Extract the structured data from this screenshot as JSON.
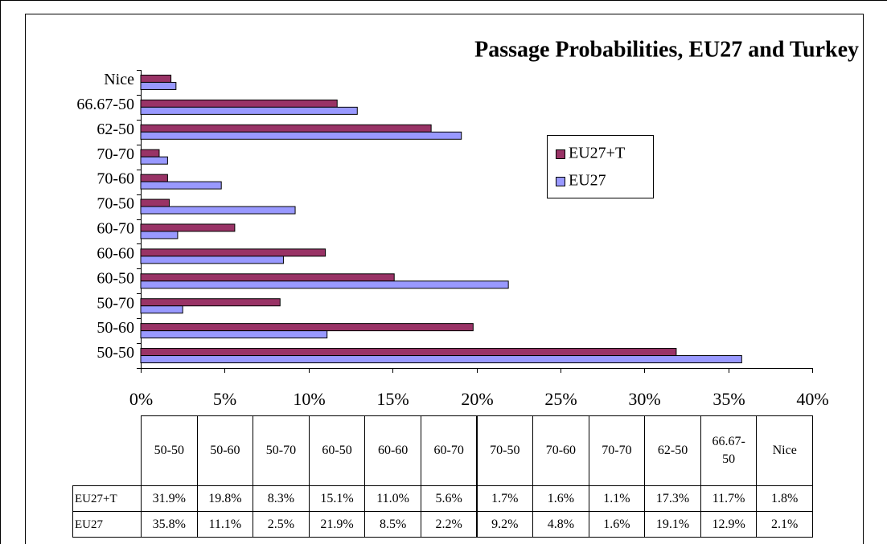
{
  "chart_data": {
    "type": "bar",
    "orientation": "horizontal",
    "title": "Passage Probabilities, EU27 and Turkey",
    "categories": [
      "50-50",
      "50-60",
      "50-70",
      "60-50",
      "60-60",
      "60-70",
      "70-50",
      "70-60",
      "70-70",
      "62-50",
      "66.67-50",
      "Nice"
    ],
    "series": [
      {
        "name": "EU27+T",
        "color": "#993366",
        "values": [
          31.9,
          19.8,
          8.3,
          15.1,
          11.0,
          5.6,
          1.7,
          1.6,
          1.1,
          17.3,
          11.7,
          1.8
        ],
        "value_labels": [
          "31.9%",
          "19.8%",
          "8.3%",
          "15.1%",
          "11.0%",
          "5.6%",
          "1.7%",
          "1.6%",
          "1.1%",
          "17.3%",
          "11.7%",
          "1.8%"
        ]
      },
      {
        "name": "EU27",
        "color": "#9999ff",
        "values": [
          35.8,
          11.1,
          2.5,
          21.9,
          8.5,
          2.2,
          9.2,
          4.8,
          1.6,
          19.1,
          12.9,
          2.1
        ],
        "value_labels": [
          "35.8%",
          "11.1%",
          "2.5%",
          "21.9%",
          "8.5%",
          "2.2%",
          "9.2%",
          "4.8%",
          "1.6%",
          "19.1%",
          "12.9%",
          "2.1%"
        ]
      }
    ],
    "xlim": [
      0,
      40
    ],
    "xticks": [
      {
        "value": 0,
        "label": "0%"
      },
      {
        "value": 5,
        "label": "5%"
      },
      {
        "value": 10,
        "label": "10%"
      },
      {
        "value": 15,
        "label": "15%"
      },
      {
        "value": 20,
        "label": "20%"
      },
      {
        "value": 25,
        "label": "25%"
      },
      {
        "value": 30,
        "label": "30%"
      },
      {
        "value": 35,
        "label": "35%"
      },
      {
        "value": 40,
        "label": "40%"
      }
    ],
    "legend": "right",
    "data_table": true
  }
}
